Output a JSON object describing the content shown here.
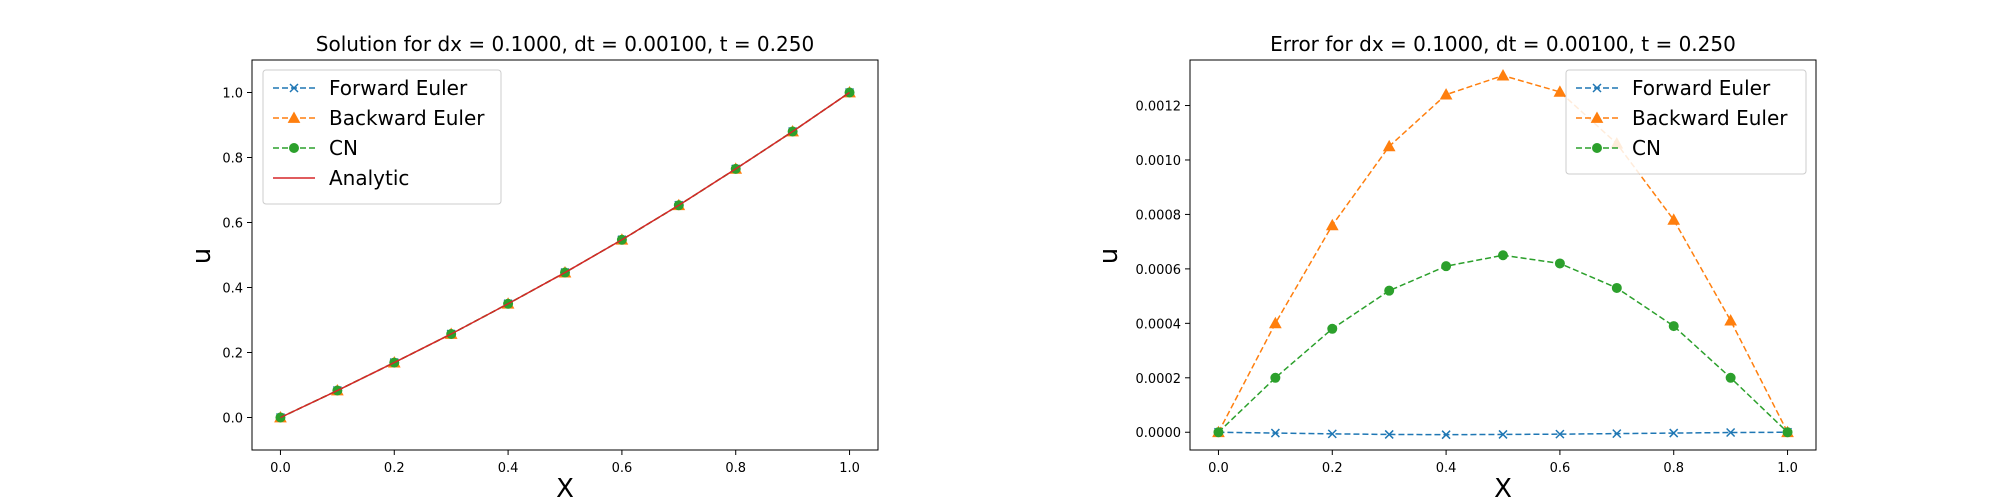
{
  "chart_data": [
    {
      "type": "line",
      "title": "Solution for dx = 0.1000, dt = 0.00100, t = 0.250",
      "xlabel": "X",
      "ylabel": "u",
      "xlim": [
        -0.05,
        1.05
      ],
      "ylim": [
        -0.1,
        1.1
      ],
      "xticks": [
        "0.0",
        "0.2",
        "0.4",
        "0.6",
        "0.8",
        "1.0"
      ],
      "yticks": [
        "0.0",
        "0.2",
        "0.4",
        "0.6",
        "0.8",
        "1.0"
      ],
      "grid": false,
      "legend_position": "upper-left",
      "x": [
        0.0,
        0.1,
        0.2,
        0.3,
        0.4,
        0.5,
        0.6,
        0.7,
        0.8,
        0.9,
        1.0
      ],
      "series": [
        {
          "name": "Forward Euler",
          "color": "#1f77b4",
          "line": "dashed",
          "marker": "x",
          "values": [
            0.0,
            0.083,
            0.169,
            0.257,
            0.35,
            0.446,
            0.547,
            0.653,
            0.765,
            0.88,
            1.0
          ]
        },
        {
          "name": "Backward Euler",
          "color": "#ff7f0e",
          "line": "dashed",
          "marker": "triangle",
          "values": [
            0.0,
            0.083,
            0.169,
            0.257,
            0.35,
            0.446,
            0.547,
            0.653,
            0.765,
            0.88,
            1.0
          ]
        },
        {
          "name": "CN",
          "color": "#2ca02c",
          "line": "dashed",
          "marker": "circle",
          "values": [
            0.0,
            0.083,
            0.169,
            0.257,
            0.35,
            0.446,
            0.547,
            0.653,
            0.765,
            0.88,
            1.0
          ]
        },
        {
          "name": "Analytic",
          "color": "#d62728",
          "line": "solid",
          "marker": "none",
          "values": [
            0.0,
            0.083,
            0.169,
            0.257,
            0.35,
            0.446,
            0.547,
            0.653,
            0.765,
            0.88,
            1.0
          ]
        }
      ]
    },
    {
      "type": "line",
      "title": "Error for dx = 0.1000, dt = 0.00100, t = 0.250",
      "xlabel": "X",
      "ylabel": "u",
      "xlim": [
        -0.05,
        1.05
      ],
      "ylim": [
        -6.52e-05,
        0.0013672
      ],
      "xticks": [
        "0.0",
        "0.2",
        "0.4",
        "0.6",
        "0.8",
        "1.0"
      ],
      "yticks": [
        "0.0000",
        "0.0002",
        "0.0004",
        "0.0006",
        "0.0008",
        "0.0010",
        "0.0012"
      ],
      "grid": false,
      "legend_position": "upper-right",
      "x": [
        0.0,
        0.1,
        0.2,
        0.3,
        0.4,
        0.5,
        0.6,
        0.7,
        0.8,
        0.9,
        1.0
      ],
      "series": [
        {
          "name": "Forward Euler",
          "color": "#1f77b4",
          "line": "dashed",
          "marker": "x",
          "values": [
            0.0,
            -3e-06,
            -6e-06,
            -8e-06,
            -9e-06,
            -8e-06,
            -7e-06,
            -5e-06,
            -3e-06,
            -1e-06,
            0.0
          ]
        },
        {
          "name": "Backward Euler",
          "color": "#ff7f0e",
          "line": "dashed",
          "marker": "triangle",
          "values": [
            0.0,
            0.0004,
            0.00076,
            0.00105,
            0.00124,
            0.00131,
            0.00125,
            0.00106,
            0.00078,
            0.00041,
            0.0
          ]
        },
        {
          "name": "CN",
          "color": "#2ca02c",
          "line": "dashed",
          "marker": "circle",
          "values": [
            0.0,
            0.0002,
            0.00038,
            0.00052,
            0.00061,
            0.00065,
            0.00062,
            0.00053,
            0.00039,
            0.0002,
            0.0
          ]
        }
      ]
    }
  ]
}
